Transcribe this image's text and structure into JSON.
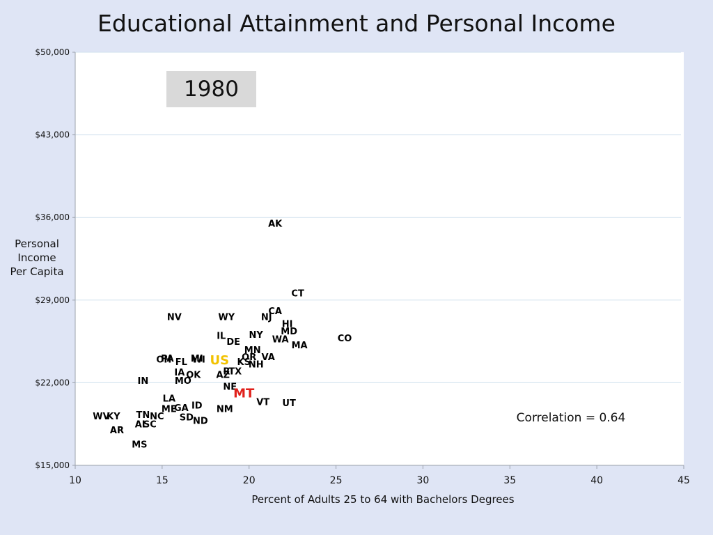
{
  "chart_data": {
    "type": "scatter",
    "title": "Educational Attainment and Personal Income",
    "xlabel": "Percent of Adults 25 to 64 with Bachelors Degrees",
    "ylabel_lines": [
      "Personal",
      "Income",
      "Per Capita"
    ],
    "xlim": [
      10,
      45
    ],
    "ylim": [
      15000,
      50000
    ],
    "x_ticks": [
      10,
      15,
      20,
      25,
      30,
      35,
      40,
      45
    ],
    "x_tick_labels": [
      "10",
      "15",
      "20",
      "25",
      "30",
      "35",
      "40",
      "45"
    ],
    "y_ticks": [
      15000,
      22000,
      29000,
      36000,
      43000,
      50000
    ],
    "y_tick_labels": [
      "$15,000",
      "$22,000",
      "$29,000",
      "$36,000",
      "$43,000",
      "$50,000"
    ],
    "grid": true,
    "year_label": "1980",
    "annotation": "Correlation = 0.64",
    "highlight_colors": {
      "US": "#f2c200",
      "MT": "#e0201b"
    },
    "point_color": "#000000",
    "points": [
      {
        "label": "AK",
        "x": 21.5,
        "y": 35500
      },
      {
        "label": "CT",
        "x": 22.8,
        "y": 29600
      },
      {
        "label": "CA",
        "x": 21.5,
        "y": 28100
      },
      {
        "label": "NV",
        "x": 15.7,
        "y": 27600
      },
      {
        "label": "WY",
        "x": 18.7,
        "y": 27600
      },
      {
        "label": "NJ",
        "x": 21.0,
        "y": 27600
      },
      {
        "label": "HI",
        "x": 22.2,
        "y": 27000
      },
      {
        "label": "MD",
        "x": 22.3,
        "y": 26400
      },
      {
        "label": "NY",
        "x": 20.4,
        "y": 26100
      },
      {
        "label": "IL",
        "x": 18.4,
        "y": 26000
      },
      {
        "label": "WA",
        "x": 21.8,
        "y": 25700
      },
      {
        "label": "DE",
        "x": 19.1,
        "y": 25500
      },
      {
        "label": "CO",
        "x": 25.5,
        "y": 25800
      },
      {
        "label": "MA",
        "x": 22.9,
        "y": 25200
      },
      {
        "label": "MN",
        "x": 20.2,
        "y": 24800
      },
      {
        "label": "VA",
        "x": 21.1,
        "y": 24200
      },
      {
        "label": "OR",
        "x": 20.0,
        "y": 24200
      },
      {
        "label": "PA",
        "x": 15.3,
        "y": 24100
      },
      {
        "label": "OH",
        "x": 15.1,
        "y": 24000
      },
      {
        "label": "MI",
        "x": 17.0,
        "y": 24100
      },
      {
        "label": "WI",
        "x": 17.1,
        "y": 24000
      },
      {
        "label": "FL",
        "x": 16.1,
        "y": 23800
      },
      {
        "label": "US",
        "x": 18.3,
        "y": 23900
      },
      {
        "label": "KS",
        "x": 19.7,
        "y": 23800
      },
      {
        "label": "NH",
        "x": 20.4,
        "y": 23600
      },
      {
        "label": "RI",
        "x": 18.8,
        "y": 23000
      },
      {
        "label": "TX",
        "x": 19.2,
        "y": 23000
      },
      {
        "label": "IA",
        "x": 16.0,
        "y": 22900
      },
      {
        "label": "OK",
        "x": 16.8,
        "y": 22700
      },
      {
        "label": "AZ",
        "x": 18.5,
        "y": 22700
      },
      {
        "label": "IN",
        "x": 13.9,
        "y": 22200
      },
      {
        "label": "MO",
        "x": 16.2,
        "y": 22200
      },
      {
        "label": "NE",
        "x": 18.9,
        "y": 21700
      },
      {
        "label": "MT",
        "x": 19.7,
        "y": 21100
      },
      {
        "label": "LA",
        "x": 15.4,
        "y": 20700
      },
      {
        "label": "VT",
        "x": 20.8,
        "y": 20400
      },
      {
        "label": "UT",
        "x": 22.3,
        "y": 20300
      },
      {
        "label": "ID",
        "x": 17.0,
        "y": 20100
      },
      {
        "label": "GA",
        "x": 16.1,
        "y": 19900
      },
      {
        "label": "ME",
        "x": 15.4,
        "y": 19800
      },
      {
        "label": "NM",
        "x": 18.6,
        "y": 19800
      },
      {
        "label": "WV",
        "x": 11.5,
        "y": 19200
      },
      {
        "label": "KY",
        "x": 12.2,
        "y": 19200
      },
      {
        "label": "TN",
        "x": 13.9,
        "y": 19300
      },
      {
        "label": "NC",
        "x": 14.7,
        "y": 19200
      },
      {
        "label": "SD",
        "x": 16.4,
        "y": 19100
      },
      {
        "label": "ND",
        "x": 17.2,
        "y": 18800
      },
      {
        "label": "AL",
        "x": 13.8,
        "y": 18500
      },
      {
        "label": "SC",
        "x": 14.3,
        "y": 18500
      },
      {
        "label": "AR",
        "x": 12.4,
        "y": 18000
      },
      {
        "label": "MS",
        "x": 13.7,
        "y": 16800
      }
    ]
  }
}
